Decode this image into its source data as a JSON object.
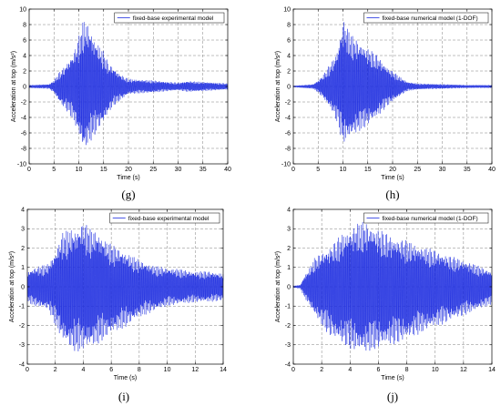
{
  "chart_data": [
    {
      "type": "line",
      "caption": "(g)",
      "xlabel": "Time (s)",
      "ylabel": "Acceleration at top (m/s²)",
      "xlim": [
        0,
        40
      ],
      "ylim": [
        -10,
        10
      ],
      "xticks": [
        0,
        5,
        10,
        15,
        20,
        25,
        30,
        35,
        40
      ],
      "yticks": [
        -10,
        -8,
        -6,
        -4,
        -2,
        0,
        2,
        4,
        6,
        8,
        10
      ],
      "grid": true,
      "legend": "top-right",
      "series": [
        {
          "name": "fixed-base experimental model",
          "color": "#1f2fe0",
          "envelope": {
            "t": [
              0,
              4,
              5,
              6,
              7,
              8,
              9,
              10,
              11,
              12,
              13,
              14,
              15,
              16,
              17,
              18,
              19,
              20,
              22,
              25,
              28,
              30,
              32,
              35,
              40
            ],
            "max": [
              0.2,
              0.3,
              0.8,
              1.8,
              2.5,
              3.5,
              4.5,
              6.5,
              8.8,
              8.0,
              6.5,
              5.5,
              4.5,
              3.0,
              2.5,
              1.8,
              1.3,
              1.0,
              0.9,
              0.8,
              0.6,
              0.5,
              0.7,
              0.6,
              0.4
            ],
            "min": [
              -0.2,
              -0.3,
              -0.8,
              -2.0,
              -2.8,
              -3.5,
              -4.5,
              -6.5,
              -8.5,
              -7.5,
              -6.5,
              -5.5,
              -4.8,
              -3.5,
              -2.5,
              -2.0,
              -1.5,
              -1.0,
              -0.9,
              -0.8,
              -0.6,
              -0.5,
              -0.7,
              -0.6,
              -0.4
            ]
          }
        }
      ]
    },
    {
      "type": "line",
      "caption": "(h)",
      "xlabel": "Time (s)",
      "ylabel": "Acceleration at top (m/s²)",
      "xlim": [
        0,
        40
      ],
      "ylim": [
        -10,
        10
      ],
      "xticks": [
        0,
        5,
        10,
        15,
        20,
        25,
        30,
        35,
        40
      ],
      "yticks": [
        -10,
        -8,
        -6,
        -4,
        -2,
        0,
        2,
        4,
        6,
        8,
        10
      ],
      "grid": true,
      "legend": "top-right",
      "series": [
        {
          "name": "fixed-base numerical model (1-DOF)",
          "color": "#1f2fe0",
          "envelope": {
            "t": [
              0,
              4,
              5,
              6,
              7,
              8,
              9,
              10,
              11,
              12,
              13,
              14,
              15,
              16,
              17,
              18,
              19,
              20,
              21,
              22,
              23,
              25,
              30,
              35,
              40
            ],
            "max": [
              0.1,
              0.3,
              0.8,
              1.5,
              2.5,
              3.5,
              5.0,
              9.0,
              7.5,
              6.5,
              6.0,
              5.5,
              5.0,
              4.5,
              4.0,
              3.2,
              2.5,
              2.0,
              1.5,
              1.0,
              0.6,
              0.4,
              0.3,
              0.2,
              0.2
            ],
            "min": [
              -0.1,
              -0.3,
              -0.8,
              -1.5,
              -2.5,
              -3.5,
              -5.0,
              -7.5,
              -7.0,
              -6.5,
              -6.0,
              -5.5,
              -5.0,
              -4.5,
              -4.0,
              -3.2,
              -2.5,
              -2.0,
              -1.5,
              -1.0,
              -0.6,
              -0.4,
              -0.3,
              -0.2,
              -0.2
            ]
          }
        }
      ]
    },
    {
      "type": "line",
      "caption": "(i)",
      "xlabel": "Time (s)",
      "ylabel": "Acceleration at top (m/s²)",
      "xlim": [
        0,
        14
      ],
      "ylim": [
        -4,
        4
      ],
      "xticks": [
        0,
        2,
        4,
        6,
        8,
        10,
        12,
        14
      ],
      "yticks": [
        -4,
        -3,
        -2,
        -1,
        0,
        1,
        2,
        3,
        4
      ],
      "grid": true,
      "legend": "top-right",
      "series": [
        {
          "name": "fixed-base experimental model",
          "color": "#1f2fe0",
          "envelope": {
            "t": [
              0,
              0.5,
              1,
              1.5,
              2,
              2.5,
              3,
              3.5,
              4,
              4.5,
              5,
              5.5,
              6,
              7,
              8,
              9,
              10,
              11,
              12,
              13,
              14
            ],
            "max": [
              0.8,
              1.0,
              1.1,
              1.2,
              1.8,
              2.8,
              3.0,
              3.0,
              3.4,
              3.0,
              2.9,
              2.5,
              2.2,
              1.8,
              1.4,
              1.1,
              1.0,
              0.9,
              0.8,
              0.8,
              0.7
            ],
            "min": [
              -0.8,
              -1.0,
              -1.1,
              -1.2,
              -2.0,
              -2.8,
              -3.2,
              -3.4,
              -3.3,
              -3.2,
              -3.0,
              -2.7,
              -2.5,
              -2.1,
              -1.6,
              -1.3,
              -1.0,
              -0.9,
              -0.8,
              -0.8,
              -0.7
            ]
          }
        }
      ]
    },
    {
      "type": "line",
      "caption": "(j)",
      "xlabel": "Time (s)",
      "ylabel": "Acceleration at top (m/s²)",
      "xlim": [
        0,
        14
      ],
      "ylim": [
        -4,
        4
      ],
      "xticks": [
        0,
        2,
        4,
        6,
        8,
        10,
        12,
        14
      ],
      "yticks": [
        -4,
        -3,
        -2,
        -1,
        0,
        1,
        2,
        3,
        4
      ],
      "grid": true,
      "legend": "top-right",
      "series": [
        {
          "name": "fixed-base numerical model (1-DOF)",
          "color": "#1f2fe0",
          "envelope": {
            "t": [
              0,
              0.5,
              0.8,
              1,
              1.5,
              2,
              2.5,
              3,
              3.5,
              4,
              4.5,
              5,
              5.5,
              6,
              7,
              8,
              9,
              10,
              11,
              12,
              13,
              14
            ],
            "max": [
              0.05,
              0.1,
              0.6,
              0.8,
              1.5,
              1.8,
              2.0,
              2.4,
              2.8,
              3.0,
              3.3,
              3.4,
              3.2,
              3.0,
              2.6,
              2.4,
              2.1,
              1.9,
              1.6,
              1.4,
              1.1,
              0.8
            ],
            "min": [
              -0.05,
              -0.1,
              -0.6,
              -0.8,
              -1.5,
              -2.0,
              -2.5,
              -2.8,
              -3.0,
              -3.2,
              -3.4,
              -3.5,
              -3.3,
              -3.2,
              -3.0,
              -2.8,
              -2.4,
              -2.1,
              -1.8,
              -1.5,
              -1.2,
              -0.9
            ]
          }
        }
      ]
    }
  ]
}
